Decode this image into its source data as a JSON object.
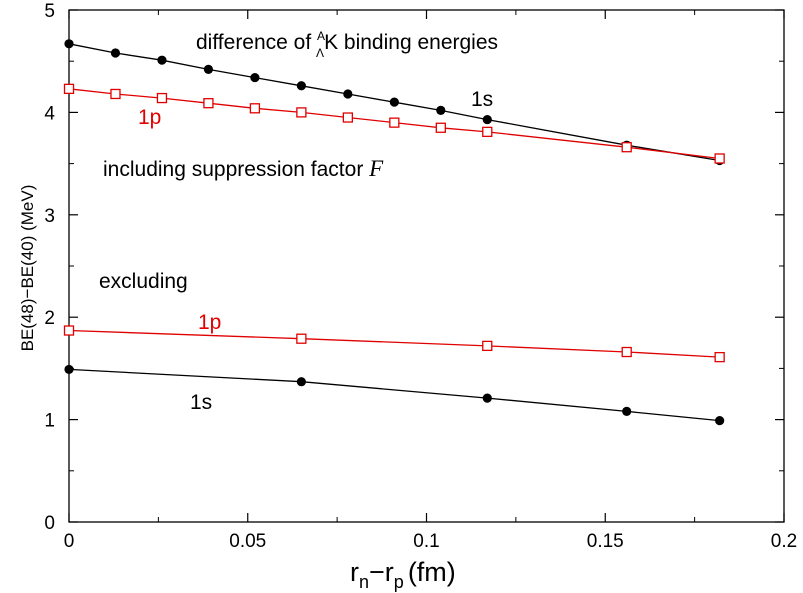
{
  "chart_data": {
    "type": "line",
    "title": "",
    "xlabel": {
      "base": "r",
      "sub1": "n",
      "minus": "−",
      "base2": "r",
      "sub2": "p",
      "unit": "(fm)"
    },
    "ylabel": "BE(48)−BE(40)  (MeV)",
    "xlim": [
      0,
      0.2
    ],
    "ylim": [
      0,
      5
    ],
    "xticks": [
      "0",
      "0.05",
      "0.1",
      "0.15",
      "0.2"
    ],
    "yticks": [
      "0",
      "1",
      "2",
      "3",
      "4",
      "5"
    ],
    "grid": false,
    "annotations": {
      "title_prefix": "difference of ",
      "title_super": "A",
      "title_sub": "Λ",
      "title_suffix": "K binding energies",
      "including": "including suppression factor ",
      "factor_symbol": "F",
      "excluding": "excluding",
      "label_1s_upper": "1s",
      "label_1p_upper": "1p",
      "label_1s_lower": "1s",
      "label_1p_lower": "1p"
    },
    "series": [
      {
        "marker": "filled-circle",
        "color": "#000000",
        "x": [
          0,
          0.013,
          0.026,
          0.039,
          0.052,
          0.065,
          0.078,
          0.091,
          0.104,
          0.117,
          0.156,
          0.182
        ],
        "y": [
          4.67,
          4.58,
          4.51,
          4.42,
          4.34,
          4.26,
          4.18,
          4.1,
          4.02,
          3.93,
          3.68,
          3.53
        ]
      },
      {
        "marker": "open-square",
        "color": "#e00000",
        "x": [
          0,
          0.013,
          0.026,
          0.039,
          0.052,
          0.065,
          0.078,
          0.091,
          0.104,
          0.117,
          0.156,
          0.182
        ],
        "y": [
          4.23,
          4.18,
          4.14,
          4.09,
          4.04,
          4.0,
          3.95,
          3.9,
          3.85,
          3.81,
          3.66,
          3.55
        ]
      },
      {
        "marker": "open-square",
        "color": "#e00000",
        "x": [
          0,
          0.065,
          0.117,
          0.156,
          0.182
        ],
        "y": [
          1.87,
          1.79,
          1.72,
          1.66,
          1.61
        ]
      },
      {
        "marker": "filled-circle",
        "color": "#000000",
        "x": [
          0,
          0.065,
          0.117,
          0.156,
          0.182
        ],
        "y": [
          1.49,
          1.37,
          1.21,
          1.08,
          0.99
        ]
      }
    ]
  }
}
